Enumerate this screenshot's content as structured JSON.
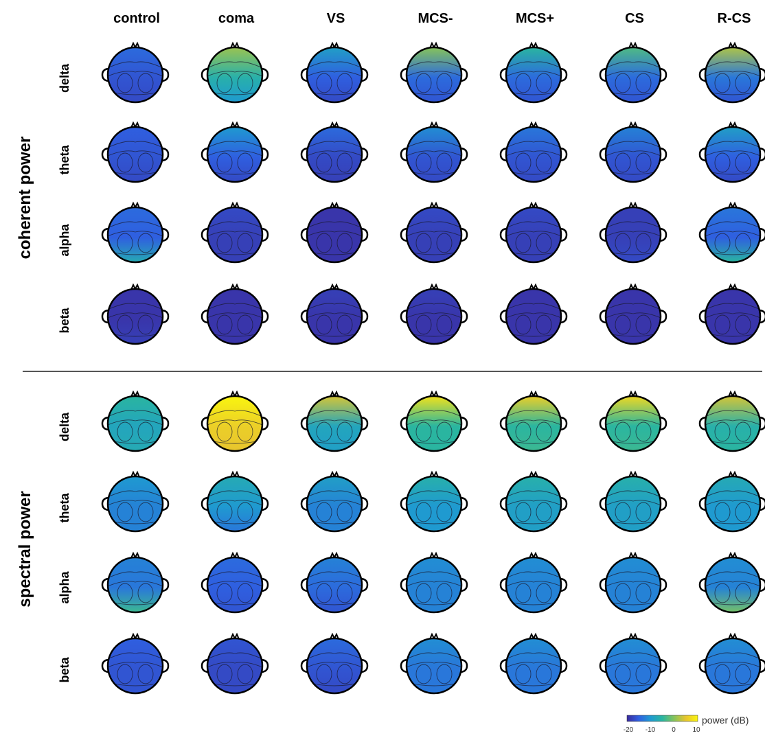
{
  "columns": [
    "control",
    "coma",
    "VS",
    "MCS-",
    "MCS+",
    "CS",
    "R-CS"
  ],
  "sections": [
    {
      "label": "coherent power",
      "bands": [
        "delta",
        "theta",
        "alpha",
        "beta"
      ]
    },
    {
      "label": "spectral power",
      "bands": [
        "delta",
        "theta",
        "alpha",
        "beta"
      ]
    }
  ],
  "colorbar": {
    "label": "power (dB)",
    "ticks": [
      "-20",
      "-10",
      "0",
      "10"
    ],
    "range": [
      -20,
      10
    ],
    "colormap": [
      "#3b2b9c",
      "#2f5fe0",
      "#1f9ad0",
      "#2ab5a0",
      "#86c35a",
      "#e8c52e",
      "#f9f50f"
    ]
  },
  "maps": {
    "coherent": {
      "delta": [
        {
          "mean": -16,
          "frontal": 2,
          "occipital": -1,
          "lateral": 0
        },
        {
          "mean": -6,
          "frontal": 7,
          "occipital": -4,
          "lateral": 0
        },
        {
          "mean": -15,
          "frontal": 6,
          "occipital": -2,
          "lateral": 0
        },
        {
          "mean": -14,
          "frontal": 14,
          "occipital": -2,
          "lateral": 0
        },
        {
          "mean": -14,
          "frontal": 9,
          "occipital": -2,
          "lateral": 0
        },
        {
          "mean": -14,
          "frontal": 11,
          "occipital": -2,
          "lateral": 0
        },
        {
          "mean": -13,
          "frontal": 15,
          "occipital": -3,
          "lateral": 0
        }
      ],
      "theta": [
        {
          "mean": -16,
          "frontal": 1,
          "occipital": -1,
          "lateral": 1
        },
        {
          "mean": -15,
          "frontal": 5,
          "occipital": -2,
          "lateral": 0
        },
        {
          "mean": -17,
          "frontal": 3,
          "occipital": -1,
          "lateral": 0
        },
        {
          "mean": -16,
          "frontal": 5,
          "occipital": -1,
          "lateral": 0
        },
        {
          "mean": -16,
          "frontal": 3,
          "occipital": -1,
          "lateral": 0
        },
        {
          "mean": -16,
          "frontal": 4,
          "occipital": -1,
          "lateral": 1
        },
        {
          "mean": -15,
          "frontal": 6,
          "occipital": -2,
          "lateral": 1
        }
      ],
      "alpha": [
        {
          "mean": -15,
          "frontal": 1,
          "occipital": 8,
          "lateral": 0
        },
        {
          "mean": -18,
          "frontal": 1,
          "occipital": 0,
          "lateral": 0
        },
        {
          "mean": -19,
          "frontal": 0,
          "occipital": 0,
          "lateral": 0
        },
        {
          "mean": -18,
          "frontal": 1,
          "occipital": 0,
          "lateral": 0
        },
        {
          "mean": -18,
          "frontal": 1,
          "occipital": 0,
          "lateral": 0
        },
        {
          "mean": -18,
          "frontal": 0,
          "occipital": 1,
          "lateral": 0
        },
        {
          "mean": -15,
          "frontal": 2,
          "occipital": 10,
          "lateral": 0
        }
      ],
      "beta": [
        {
          "mean": -19,
          "frontal": 0,
          "occipital": 1,
          "lateral": 0
        },
        {
          "mean": -19,
          "frontal": 0,
          "occipital": 0,
          "lateral": 0
        },
        {
          "mean": -19,
          "frontal": 1,
          "occipital": 0,
          "lateral": 0
        },
        {
          "mean": -19,
          "frontal": 1,
          "occipital": 0,
          "lateral": 0
        },
        {
          "mean": -19,
          "frontal": 0,
          "occipital": 0,
          "lateral": 0
        },
        {
          "mean": -19,
          "frontal": 0,
          "occipital": 0,
          "lateral": 0
        },
        {
          "mean": -19,
          "frontal": 0,
          "occipital": 0,
          "lateral": 0
        }
      ]
    },
    "spectral": {
      "delta": [
        {
          "mean": -8,
          "frontal": 3,
          "occipital": 1,
          "lateral": 1
        },
        {
          "mean": 6,
          "frontal": 5,
          "occipital": -1,
          "lateral": 0
        },
        {
          "mean": -8,
          "frontal": 12,
          "occipital": -1,
          "lateral": 0
        },
        {
          "mean": -5,
          "frontal": 13,
          "occipital": 0,
          "lateral": 0
        },
        {
          "mean": -5,
          "frontal": 11,
          "occipital": 1,
          "lateral": 0
        },
        {
          "mean": -5,
          "frontal": 12,
          "occipital": 1,
          "lateral": 0
        },
        {
          "mean": -6,
          "frontal": 10,
          "occipital": 1,
          "lateral": 1
        }
      ],
      "theta": [
        {
          "mean": -12,
          "frontal": 2,
          "occipital": 0,
          "lateral": 1
        },
        {
          "mean": -10,
          "frontal": 3,
          "occipital": -3,
          "lateral": 0
        },
        {
          "mean": -12,
          "frontal": 3,
          "occipital": 0,
          "lateral": 0
        },
        {
          "mean": -10,
          "frontal": 4,
          "occipital": 0,
          "lateral": 0
        },
        {
          "mean": -9,
          "frontal": 3,
          "occipital": 0,
          "lateral": 0
        },
        {
          "mean": -9,
          "frontal": 3,
          "occipital": 0,
          "lateral": 0
        },
        {
          "mean": -10,
          "frontal": 3,
          "occipital": 0,
          "lateral": 1
        }
      ],
      "alpha": [
        {
          "mean": -13,
          "frontal": 1,
          "occipital": 9,
          "lateral": 0
        },
        {
          "mean": -15,
          "frontal": 1,
          "occipital": -1,
          "lateral": 0
        },
        {
          "mean": -14,
          "frontal": 2,
          "occipital": -2,
          "lateral": 0
        },
        {
          "mean": -12,
          "frontal": 1,
          "occipital": 0,
          "lateral": 0
        },
        {
          "mean": -12,
          "frontal": 1,
          "occipital": 0,
          "lateral": 0
        },
        {
          "mean": -12,
          "frontal": 1,
          "occipital": 0,
          "lateral": 0
        },
        {
          "mean": -12,
          "frontal": 1,
          "occipital": 11,
          "lateral": 0
        }
      ],
      "beta": [
        {
          "mean": -16,
          "frontal": 1,
          "occipital": 0,
          "lateral": 0
        },
        {
          "mean": -17,
          "frontal": 1,
          "occipital": 0,
          "lateral": 0
        },
        {
          "mean": -16,
          "frontal": 2,
          "occipital": -1,
          "lateral": 0
        },
        {
          "mean": -13,
          "frontal": 2,
          "occipital": 0,
          "lateral": 0
        },
        {
          "mean": -13,
          "frontal": 2,
          "occipital": 0,
          "lateral": 0
        },
        {
          "mean": -13,
          "frontal": 2,
          "occipital": 0,
          "lateral": 0
        },
        {
          "mean": -13,
          "frontal": 2,
          "occipital": 0,
          "lateral": 0
        }
      ]
    }
  }
}
